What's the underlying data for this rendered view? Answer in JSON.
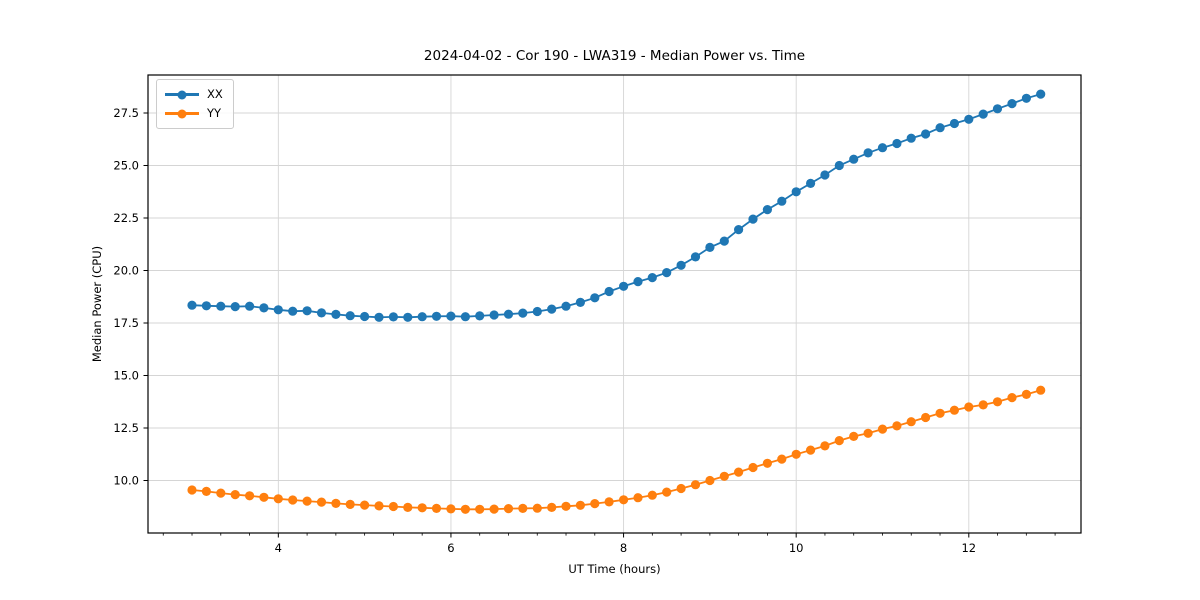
{
  "chart_data": {
    "type": "line",
    "title": "2024-04-02 - Cor 190 - LWA319 - Median Power vs. Time",
    "xlabel": "UT Time (hours)",
    "ylabel": "Median Power (CPU)",
    "xlim": [
      2.49,
      13.3
    ],
    "ylim": [
      7.5,
      29.31
    ],
    "x_major_ticks": [
      4,
      6,
      8,
      10,
      12
    ],
    "x_minor_step": 0.33333,
    "y_ticks": [
      10.0,
      12.5,
      15.0,
      17.5,
      20.0,
      22.5,
      25.0,
      27.5
    ],
    "grid": true,
    "grid_color": "#d5d5d5",
    "legend_position": "upper-left",
    "marker": "circle",
    "x": [
      3.0,
      3.167,
      3.333,
      3.5,
      3.667,
      3.833,
      4.0,
      4.167,
      4.333,
      4.5,
      4.667,
      4.833,
      5.0,
      5.167,
      5.333,
      5.5,
      5.667,
      5.833,
      6.0,
      6.167,
      6.333,
      6.5,
      6.667,
      6.833,
      7.0,
      7.167,
      7.333,
      7.5,
      7.667,
      7.833,
      8.0,
      8.167,
      8.333,
      8.5,
      8.667,
      8.833,
      9.0,
      9.167,
      9.333,
      9.5,
      9.667,
      9.833,
      10.0,
      10.167,
      10.333,
      10.5,
      10.667,
      10.833,
      11.0,
      11.167,
      11.333,
      11.5,
      11.667,
      11.833,
      12.0,
      12.167,
      12.333,
      12.5,
      12.667,
      12.833
    ],
    "series": [
      {
        "name": "XX",
        "color": "#1f77b4",
        "values": [
          18.35,
          18.32,
          18.3,
          18.28,
          18.3,
          18.22,
          18.13,
          18.06,
          18.08,
          17.98,
          17.91,
          17.85,
          17.81,
          17.77,
          17.79,
          17.77,
          17.8,
          17.82,
          17.83,
          17.8,
          17.84,
          17.88,
          17.92,
          17.97,
          18.05,
          18.16,
          18.3,
          18.48,
          18.7,
          19.0,
          19.25,
          19.47,
          19.66,
          19.9,
          20.25,
          20.65,
          21.1,
          21.4,
          21.95,
          22.45,
          22.9,
          23.3,
          23.75,
          24.15,
          24.55,
          25.0,
          25.3,
          25.6,
          25.85,
          26.05,
          26.3,
          26.5,
          26.8,
          27.0,
          27.2,
          27.45,
          27.7,
          27.95,
          28.2,
          28.4
        ]
      },
      {
        "name": "YY",
        "color": "#ff7f0e",
        "values": [
          9.55,
          9.48,
          9.4,
          9.33,
          9.27,
          9.2,
          9.13,
          9.07,
          9.02,
          8.97,
          8.91,
          8.86,
          8.83,
          8.79,
          8.76,
          8.72,
          8.7,
          8.67,
          8.65,
          8.63,
          8.63,
          8.64,
          8.66,
          8.67,
          8.68,
          8.72,
          8.77,
          8.82,
          8.9,
          8.98,
          9.08,
          9.18,
          9.3,
          9.45,
          9.62,
          9.8,
          10.0,
          10.2,
          10.4,
          10.62,
          10.82,
          11.02,
          11.25,
          11.45,
          11.65,
          11.9,
          12.1,
          12.25,
          12.45,
          12.6,
          12.8,
          13.0,
          13.2,
          13.35,
          13.5,
          13.6,
          13.75,
          13.95,
          14.1,
          14.3
        ]
      }
    ]
  }
}
